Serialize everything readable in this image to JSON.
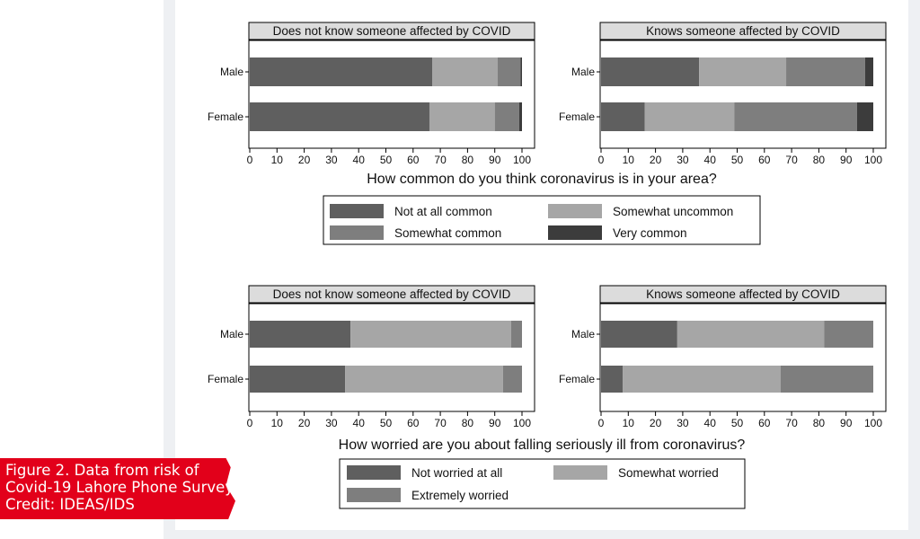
{
  "caption": {
    "text": "Figure 2. Data from risk of Covid-19 Lahore Phone Survey Credit: IDEAS/IDS"
  },
  "colors": {
    "not_at_all_common": "#5f5f5f",
    "somewhat_uncommon": "#a6a6a6",
    "somewhat_common": "#7e7e7e",
    "very_common": "#3c3c3c",
    "not_worried": "#5f5f5f",
    "somewhat_worried": "#a6a6a6",
    "extremely_worried": "#7e7e7e",
    "panel_header_bg": "#dcdcdc"
  },
  "chart_data": [
    {
      "type": "bar",
      "orientation": "horizontal",
      "stacked": true,
      "title": "How common do you think coronavirus is in your area?",
      "panels": [
        {
          "title": "Does not know someone affected by COVID",
          "categories": [
            "Male",
            "Female"
          ],
          "series": [
            {
              "name": "Not at all common",
              "values": [
                67,
                66
              ]
            },
            {
              "name": "Somewhat uncommon",
              "values": [
                24,
                24
              ]
            },
            {
              "name": "Somewhat common",
              "values": [
                8.5,
                9
              ]
            },
            {
              "name": "Very common",
              "values": [
                0.5,
                1
              ]
            }
          ]
        },
        {
          "title": "Knows someone affected by COVID",
          "categories": [
            "Male",
            "Female"
          ],
          "series": [
            {
              "name": "Not at all common",
              "values": [
                36,
                16
              ]
            },
            {
              "name": "Somewhat uncommon",
              "values": [
                32,
                33
              ]
            },
            {
              "name": "Somewhat common",
              "values": [
                29,
                45
              ]
            },
            {
              "name": "Very common",
              "values": [
                3,
                6
              ]
            }
          ]
        }
      ],
      "xlim": [
        0,
        100
      ],
      "xticks": [
        "0",
        "10",
        "20",
        "30",
        "40",
        "50",
        "60",
        "70",
        "80",
        "90",
        "100"
      ],
      "legend": {
        "placement": "bottom",
        "entries": [
          "Not at all common",
          "Somewhat uncommon",
          "Somewhat common",
          "Very common"
        ]
      }
    },
    {
      "type": "bar",
      "orientation": "horizontal",
      "stacked": true,
      "title": "How worried are you about falling seriously ill from coronavirus?",
      "panels": [
        {
          "title": "Does not know someone affected by COVID",
          "categories": [
            "Male",
            "Female"
          ],
          "series": [
            {
              "name": "Not worried at all",
              "values": [
                37,
                35
              ]
            },
            {
              "name": "Somewhat worried",
              "values": [
                59,
                58
              ]
            },
            {
              "name": "Extremely worried",
              "values": [
                4,
                7
              ]
            }
          ]
        },
        {
          "title": "Knows someone affected by COVID",
          "categories": [
            "Male",
            "Female"
          ],
          "series": [
            {
              "name": "Not worried at all",
              "values": [
                28,
                8
              ]
            },
            {
              "name": "Somewhat worried",
              "values": [
                54,
                58
              ]
            },
            {
              "name": "Extremely worried",
              "values": [
                18,
                34
              ]
            }
          ]
        }
      ],
      "xlim": [
        0,
        100
      ],
      "xticks": [
        "0",
        "10",
        "20",
        "30",
        "40",
        "50",
        "60",
        "70",
        "80",
        "90",
        "100"
      ],
      "legend": {
        "placement": "bottom",
        "entries": [
          "Not worried at all",
          "Somewhat worried",
          "Extremely worried"
        ]
      }
    }
  ]
}
